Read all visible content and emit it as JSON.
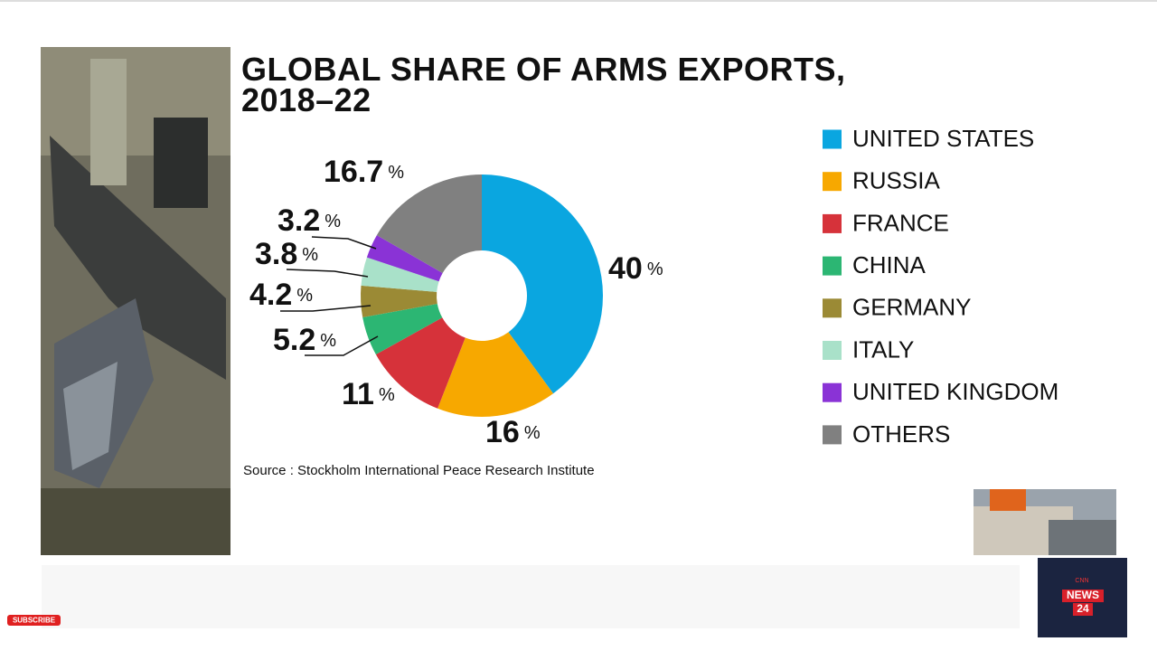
{
  "chart_data": {
    "type": "donut",
    "title": "GLOBAL SHARE OF ARMS EXPORTS,\n2018–22",
    "categories": [
      "UNITED STATES",
      "RUSSIA",
      "FRANCE",
      "CHINA",
      "GERMANY",
      "ITALY",
      "UNITED KINGDOM",
      "OTHERS"
    ],
    "values": [
      40,
      16,
      11,
      5.2,
      4.2,
      3.8,
      3.2,
      16.7
    ],
    "colors": [
      "#0aa6e0",
      "#f7a800",
      "#d6323a",
      "#2cb673",
      "#9b8a35",
      "#a9e1c9",
      "#8a33d6",
      "#808080"
    ],
    "value_unit": "%",
    "source": "Source : Stockholm International Peace Research Institute"
  },
  "overlay": {
    "subscribe": "SUBSCRIBE",
    "logo": {
      "top": "CNN",
      "middle": "NEWS",
      "bottom": "24"
    }
  }
}
